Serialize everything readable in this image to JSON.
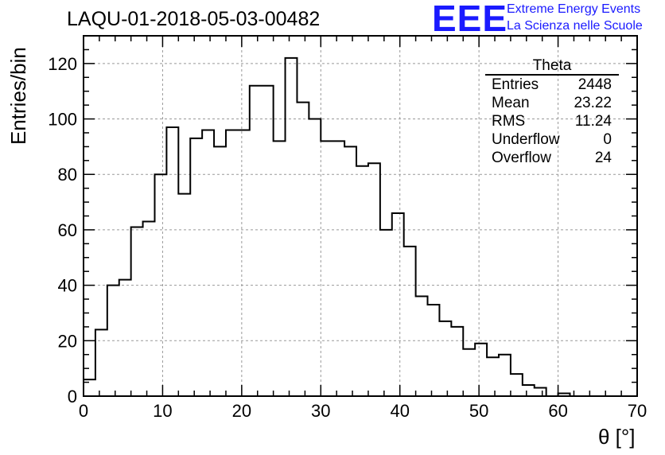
{
  "header": {
    "title": "LAQU-01-2018-05-03-00482",
    "logo_text": "EEE",
    "org_line1": "Extreme Energy Events",
    "org_line2": "La Scienza nelle Scuole",
    "brand_color": "#1a1aff"
  },
  "stats": {
    "name": "Theta",
    "rows": [
      {
        "label": "Entries",
        "value": "2448"
      },
      {
        "label": "Mean",
        "value": "23.22"
      },
      {
        "label": "RMS",
        "value": "11.24"
      },
      {
        "label": "Underflow",
        "value": "0"
      },
      {
        "label": "Overflow",
        "value": "24"
      }
    ]
  },
  "chart_data": {
    "type": "histogram",
    "title": "LAQU-01-2018-05-03-00482",
    "xlabel": "θ [°]",
    "ylabel": "Entries/bin",
    "xlim": [
      0,
      70
    ],
    "ylim": [
      0,
      130
    ],
    "grid": true,
    "bin_width": 1.5,
    "x_ticks": [
      0,
      10,
      20,
      30,
      40,
      50,
      60,
      70
    ],
    "y_ticks": [
      0,
      20,
      40,
      60,
      80,
      100,
      120
    ],
    "bins": [
      {
        "x": 0.0,
        "y": 6
      },
      {
        "x": 1.5,
        "y": 24
      },
      {
        "x": 3.0,
        "y": 40
      },
      {
        "x": 4.5,
        "y": 42
      },
      {
        "x": 6.0,
        "y": 61
      },
      {
        "x": 7.5,
        "y": 63
      },
      {
        "x": 9.0,
        "y": 80
      },
      {
        "x": 10.5,
        "y": 97
      },
      {
        "x": 12.0,
        "y": 73
      },
      {
        "x": 13.5,
        "y": 93
      },
      {
        "x": 15.0,
        "y": 96
      },
      {
        "x": 16.5,
        "y": 90
      },
      {
        "x": 18.0,
        "y": 96
      },
      {
        "x": 19.5,
        "y": 96
      },
      {
        "x": 21.0,
        "y": 112
      },
      {
        "x": 22.5,
        "y": 112
      },
      {
        "x": 24.0,
        "y": 92
      },
      {
        "x": 25.5,
        "y": 122
      },
      {
        "x": 27.0,
        "y": 106
      },
      {
        "x": 28.5,
        "y": 100
      },
      {
        "x": 30.0,
        "y": 92
      },
      {
        "x": 31.5,
        "y": 92
      },
      {
        "x": 33.0,
        "y": 90
      },
      {
        "x": 34.5,
        "y": 83
      },
      {
        "x": 36.0,
        "y": 84
      },
      {
        "x": 37.5,
        "y": 60
      },
      {
        "x": 39.0,
        "y": 66
      },
      {
        "x": 40.5,
        "y": 54
      },
      {
        "x": 42.0,
        "y": 36
      },
      {
        "x": 43.5,
        "y": 33
      },
      {
        "x": 45.0,
        "y": 27
      },
      {
        "x": 46.5,
        "y": 25
      },
      {
        "x": 48.0,
        "y": 17
      },
      {
        "x": 49.5,
        "y": 19
      },
      {
        "x": 51.0,
        "y": 14
      },
      {
        "x": 52.5,
        "y": 15
      },
      {
        "x": 54.0,
        "y": 8
      },
      {
        "x": 55.5,
        "y": 4
      },
      {
        "x": 57.0,
        "y": 3
      },
      {
        "x": 58.5,
        "y": 0
      },
      {
        "x": 60.0,
        "y": 1
      },
      {
        "x": 61.5,
        "y": 0
      },
      {
        "x": 63.0,
        "y": 0
      },
      {
        "x": 64.5,
        "y": 0
      },
      {
        "x": 66.0,
        "y": 0
      },
      {
        "x": 67.5,
        "y": 0
      }
    ]
  }
}
